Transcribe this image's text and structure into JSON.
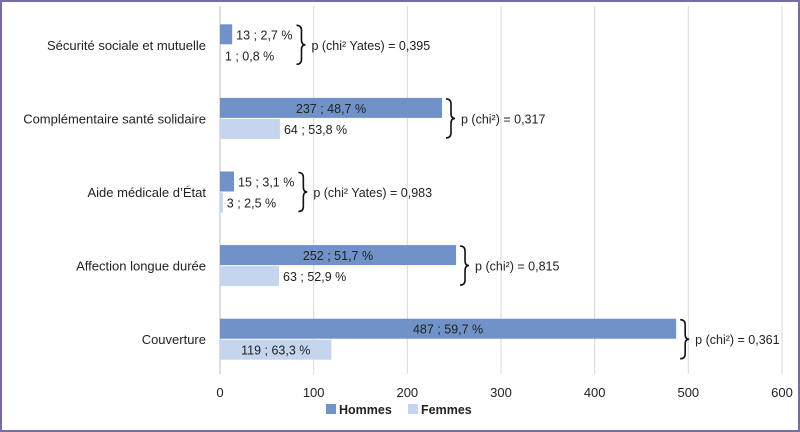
{
  "chart_data": {
    "type": "bar",
    "orientation": "horizontal",
    "categories": [
      "Sécurité sociale et mutuelle",
      "Complémentaire santé solidaire",
      "Aide médicale d’État",
      "Affection longue durée",
      "Couverture"
    ],
    "series": [
      {
        "name": "Hommes",
        "color": "#7092c8",
        "values": [
          13,
          237,
          15,
          252,
          487
        ],
        "labels": [
          "13 ; 2,7 %",
          "237 ; 48,7 %",
          "15 ; 3,1 %",
          "252 ; 51,7 %",
          "487 ; 59,7 %"
        ]
      },
      {
        "name": "Femmes",
        "color": "#c5d5ee",
        "values": [
          1,
          64,
          3,
          63,
          119
        ],
        "labels": [
          "1 ; 0,8 %",
          "64 ; 53,8 %",
          "3 ; 2,5 %",
          "63 ; 52,9 %",
          "119 ; 63,3 %"
        ]
      }
    ],
    "annotations": [
      "p (chi² Yates) = 0,395",
      "p (chi²) = 0,317",
      "p (chi² Yates) = 0,983",
      "p (chi²) = 0,815",
      "p (chi²) = 0,361"
    ],
    "xlim": [
      0,
      600
    ],
    "xticks": [
      "0",
      "100",
      "200",
      "300",
      "400",
      "500",
      "600"
    ],
    "grid": true,
    "legend": "bottom",
    "frame_color": "#7b6aa8"
  }
}
